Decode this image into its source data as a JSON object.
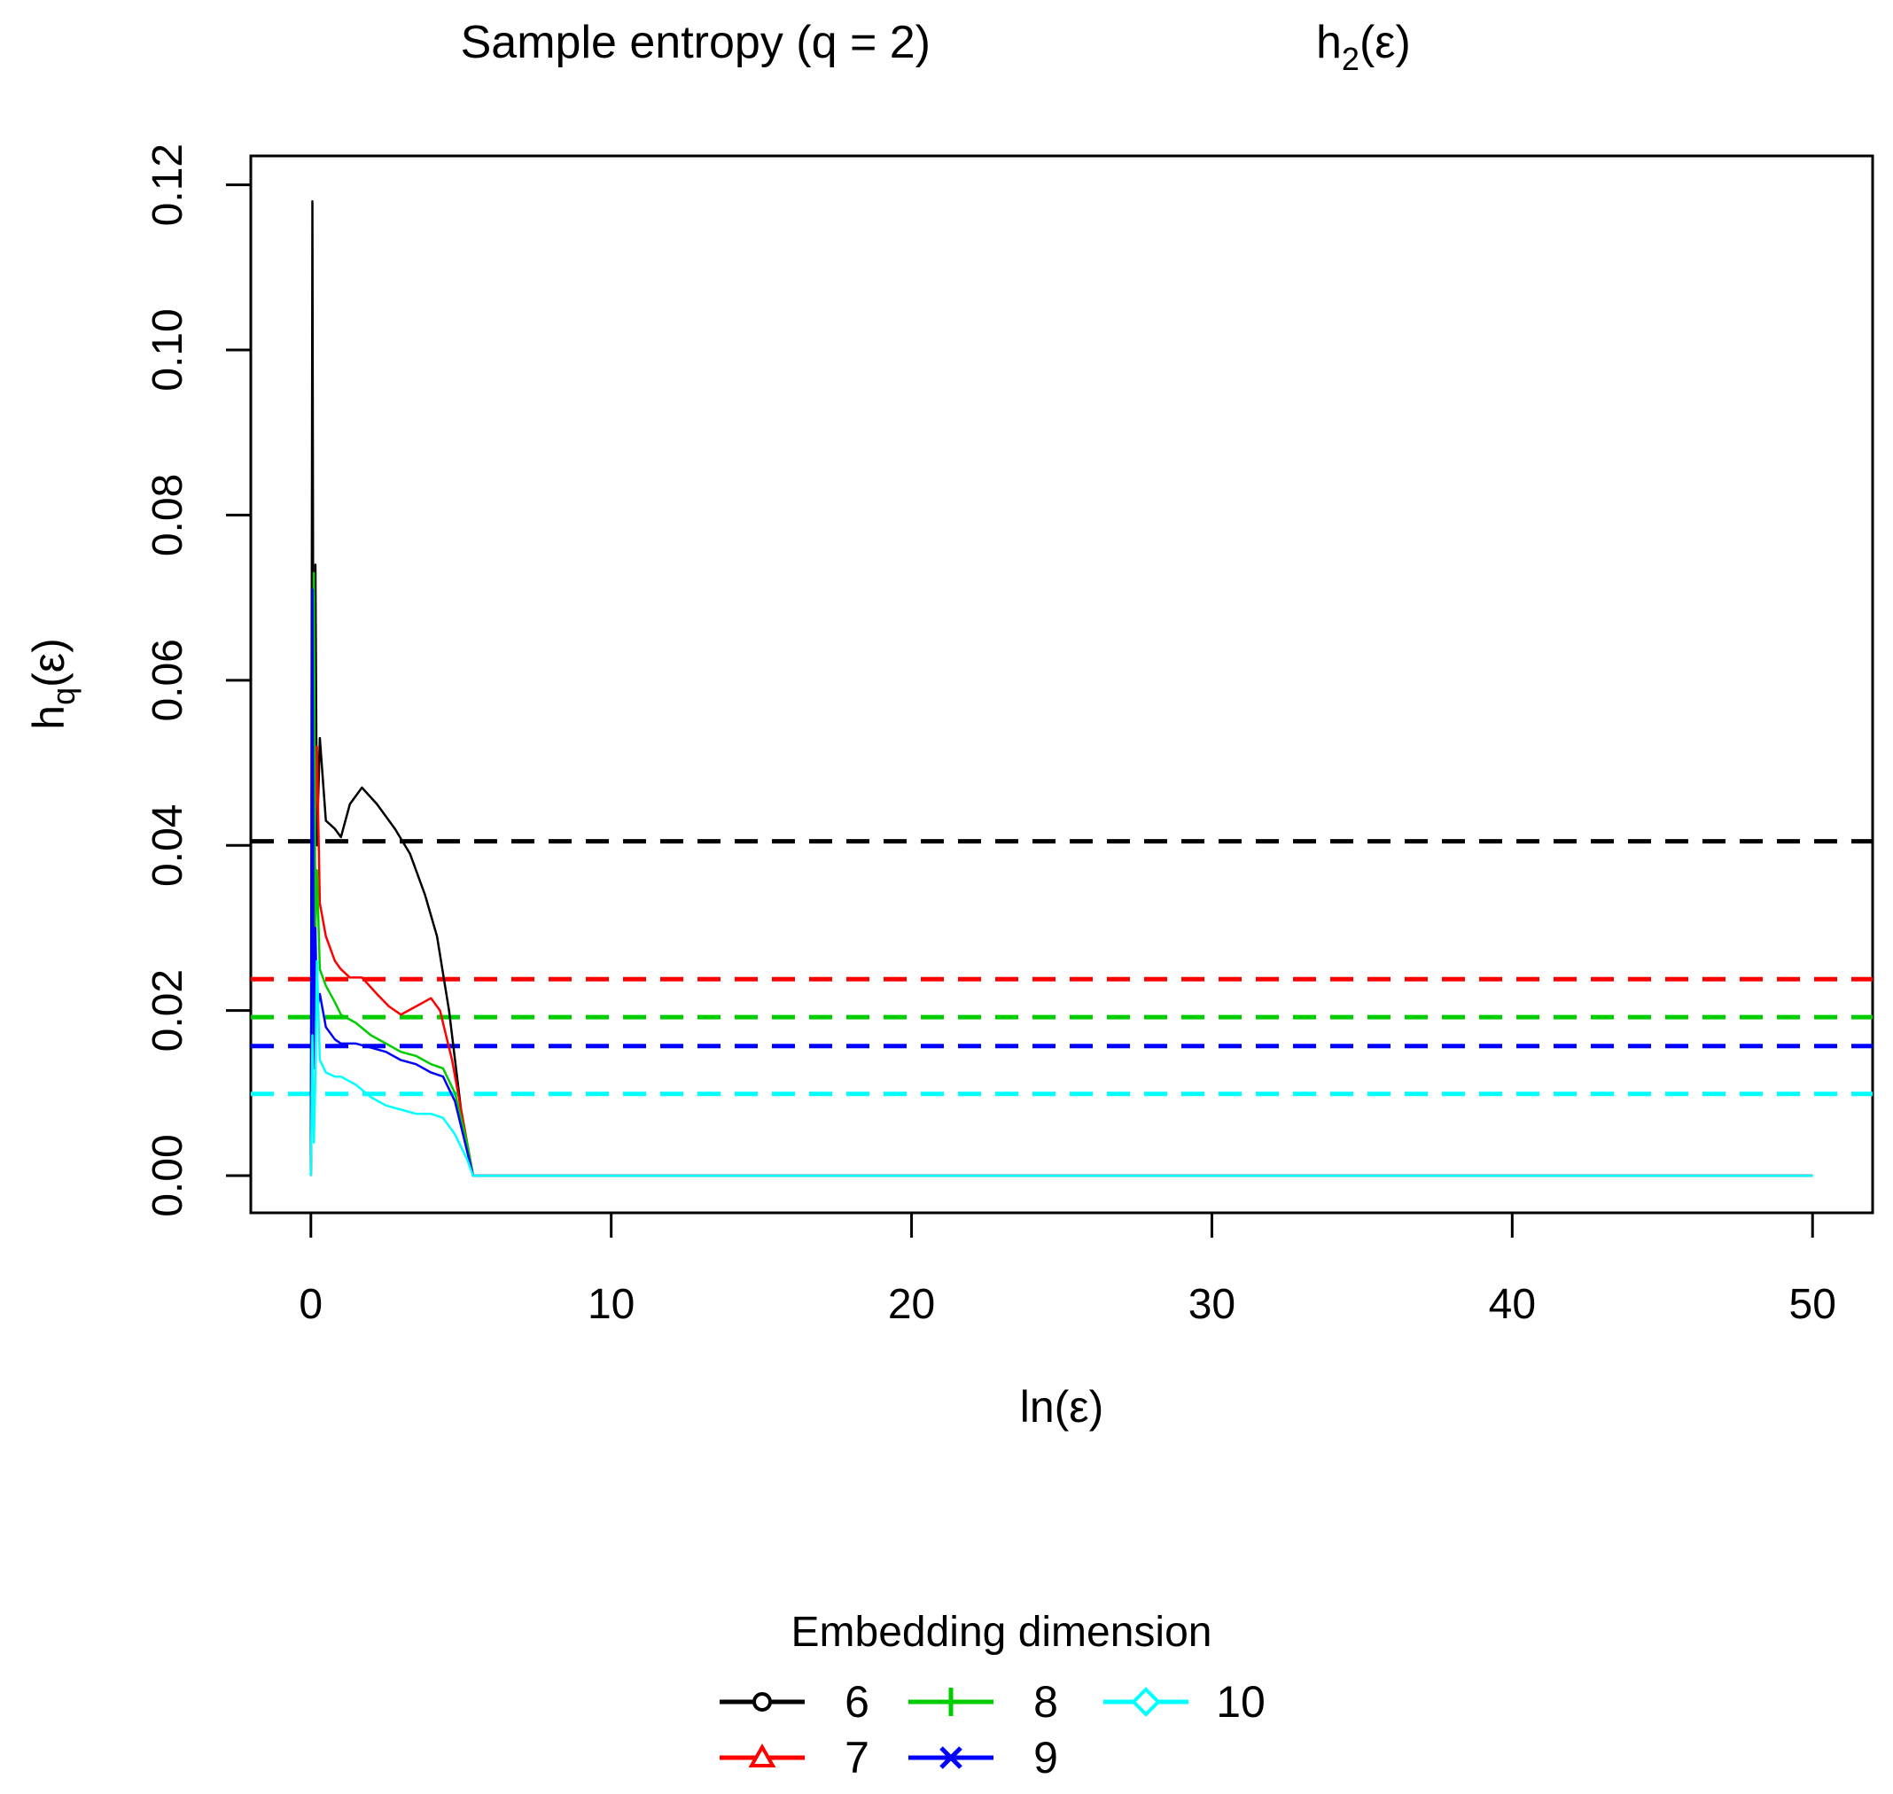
{
  "chart_data": {
    "type": "line",
    "title": {
      "main": "Sample entropy (q = 2)",
      "expr_base": "h",
      "expr_sub": "2",
      "expr_tail": "(ε)"
    },
    "xlabel": "ln(ε)",
    "ylabel": {
      "base": "h",
      "sub": "q",
      "tail": "(ε)"
    },
    "xlim": [
      -2,
      52
    ],
    "ylim": [
      -0.0045,
      0.1235
    ],
    "x_ticks": [
      0,
      10,
      20,
      30,
      40,
      50
    ],
    "x_tick_labels": [
      "0",
      "10",
      "20",
      "30",
      "40",
      "50"
    ],
    "y_ticks": [
      0,
      0.02,
      0.04,
      0.06,
      0.08,
      0.1,
      0.12
    ],
    "y_tick_labels": [
      "0.00",
      "0.02",
      "0.04",
      "0.06",
      "0.08",
      "0.10",
      "0.12"
    ],
    "grid": false,
    "legend": {
      "title": "Embedding dimension",
      "position": "bottom"
    },
    "series": [
      {
        "name": "6",
        "color": "#000000",
        "marker": "circle",
        "x": [
          0.0,
          0.05,
          0.1,
          0.15,
          0.2,
          0.3,
          0.5,
          0.8,
          1.0,
          1.3,
          1.7,
          2.2,
          2.8,
          3.3,
          3.8,
          4.2,
          4.6,
          5.0,
          5.4,
          10,
          20,
          30,
          40,
          50
        ],
        "y": [
          0.0,
          0.118,
          0.02,
          0.074,
          0.04,
          0.053,
          0.043,
          0.042,
          0.041,
          0.045,
          0.047,
          0.045,
          0.042,
          0.039,
          0.034,
          0.029,
          0.02,
          0.008,
          0.0,
          0.0,
          0.0,
          0.0,
          0.0,
          0.0
        ],
        "mean": 0.0405
      },
      {
        "name": "7",
        "color": "#ff0000",
        "marker": "triangle",
        "x": [
          0.0,
          0.1,
          0.2,
          0.3,
          0.5,
          0.8,
          1.0,
          1.3,
          1.7,
          2.2,
          2.6,
          3.0,
          3.5,
          4.0,
          4.3,
          4.7,
          5.1,
          5.4,
          10,
          20,
          30,
          40,
          50
        ],
        "y": [
          0.0,
          0.036,
          0.052,
          0.033,
          0.029,
          0.026,
          0.025,
          0.024,
          0.024,
          0.022,
          0.0205,
          0.0195,
          0.0205,
          0.0215,
          0.02,
          0.014,
          0.006,
          0.0,
          0.0,
          0.0,
          0.0,
          0.0,
          0.0
        ],
        "mean": 0.0238
      },
      {
        "name": "8",
        "color": "#00cd00",
        "marker": "plus",
        "x": [
          0.0,
          0.1,
          0.15,
          0.2,
          0.3,
          0.5,
          0.8,
          1.0,
          1.5,
          2.0,
          2.5,
          3.0,
          3.5,
          4.0,
          4.4,
          4.8,
          5.2,
          5.4,
          10,
          20,
          30,
          40,
          50
        ],
        "y": [
          0.0,
          0.073,
          0.03,
          0.037,
          0.025,
          0.023,
          0.021,
          0.0195,
          0.0185,
          0.017,
          0.016,
          0.015,
          0.0145,
          0.0135,
          0.013,
          0.01,
          0.004,
          0.0,
          0.0,
          0.0,
          0.0,
          0.0,
          0.0
        ],
        "mean": 0.0192
      },
      {
        "name": "9",
        "color": "#0000ff",
        "marker": "cross",
        "x": [
          0.0,
          0.05,
          0.1,
          0.15,
          0.2,
          0.3,
          0.5,
          0.8,
          1.0,
          1.5,
          2.0,
          2.5,
          3.0,
          3.5,
          4.0,
          4.4,
          4.8,
          5.2,
          5.4,
          10,
          20,
          30,
          40,
          50
        ],
        "y": [
          0.0,
          0.071,
          0.013,
          0.03,
          0.02,
          0.022,
          0.018,
          0.0165,
          0.016,
          0.016,
          0.0155,
          0.015,
          0.014,
          0.0135,
          0.0125,
          0.012,
          0.009,
          0.003,
          0.0,
          0.0,
          0.0,
          0.0,
          0.0,
          0.0
        ],
        "mean": 0.0157
      },
      {
        "name": "10",
        "color": "#00ffff",
        "marker": "diamond",
        "x": [
          0.0,
          0.05,
          0.1,
          0.15,
          0.2,
          0.3,
          0.5,
          0.8,
          1.0,
          1.5,
          2.0,
          2.5,
          3.0,
          3.5,
          4.0,
          4.4,
          4.8,
          5.2,
          5.4,
          10,
          20,
          30,
          40,
          50
        ],
        "y": [
          0.0,
          0.017,
          0.004,
          0.012,
          0.026,
          0.014,
          0.0125,
          0.012,
          0.012,
          0.011,
          0.0095,
          0.0085,
          0.008,
          0.0075,
          0.0075,
          0.007,
          0.005,
          0.002,
          0.0,
          0.0,
          0.0,
          0.0,
          0.0,
          0.0
        ],
        "mean": 0.0099
      }
    ]
  }
}
